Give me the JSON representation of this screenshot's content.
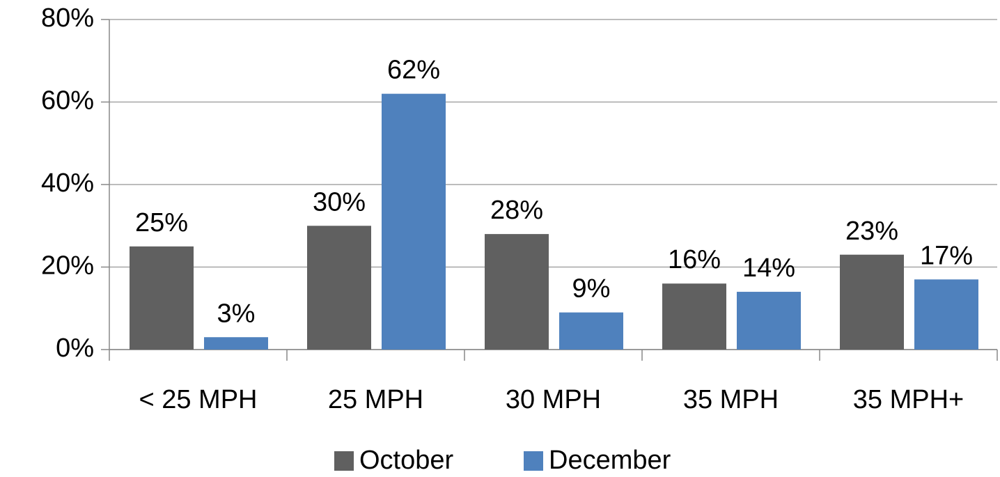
{
  "chart_data": {
    "type": "bar",
    "categories": [
      "< 25 MPH",
      "25 MPH",
      "30 MPH",
      "35 MPH",
      "35 MPH+"
    ],
    "series": [
      {
        "name": "October",
        "color": "#606060",
        "values": [
          25,
          30,
          28,
          16,
          23
        ],
        "value_labels": [
          "25%",
          "30%",
          "28%",
          "16%",
          "23%"
        ]
      },
      {
        "name": "December",
        "color": "#4f81bd",
        "values": [
          3,
          62,
          9,
          14,
          17
        ],
        "value_labels": [
          "3%",
          "62%",
          "9%",
          "14%",
          "17%"
        ]
      }
    ],
    "ylim": [
      0,
      80
    ],
    "yticks": [
      {
        "value": 0,
        "label": "0%"
      },
      {
        "value": 20,
        "label": "20%"
      },
      {
        "value": 40,
        "label": "40%"
      },
      {
        "value": 60,
        "label": "60%"
      },
      {
        "value": 80,
        "label": "80%"
      }
    ],
    "grid": true,
    "legend": "bottom"
  }
}
